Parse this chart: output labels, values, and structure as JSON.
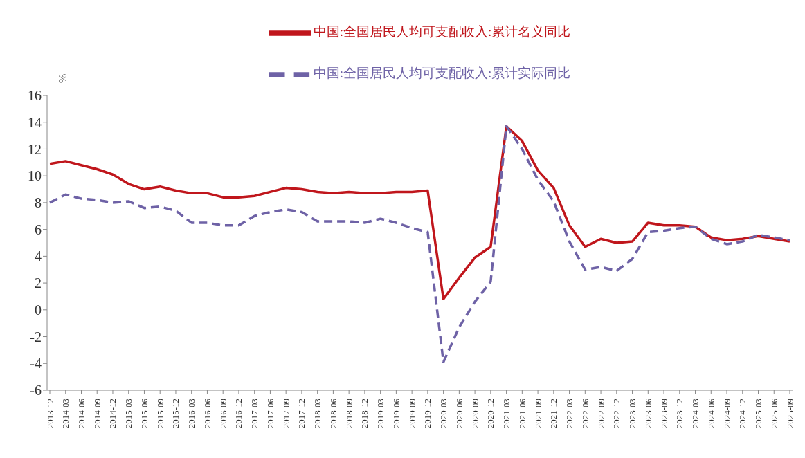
{
  "chart_data": {
    "type": "line",
    "ylabel": "%",
    "categories": [
      "2013-12",
      "2014-03",
      "2014-06",
      "2014-09",
      "2014-12",
      "2015-03",
      "2015-06",
      "2015-09",
      "2015-12",
      "2016-03",
      "2016-06",
      "2016-09",
      "2016-12",
      "2017-03",
      "2017-06",
      "2017-09",
      "2017-12",
      "2018-03",
      "2018-06",
      "2018-09",
      "2018-12",
      "2019-03",
      "2019-06",
      "2019-09",
      "2019-12",
      "2020-03",
      "2020-06",
      "2020-09",
      "2020-12",
      "2021-03",
      "2021-06",
      "2021-09",
      "2021-12",
      "2022-03",
      "2022-06",
      "2022-09",
      "2022-12",
      "2023-03",
      "2023-06",
      "2023-09",
      "2023-12",
      "2024-03",
      "2024-06",
      "2024-09",
      "2024-12",
      "2025-03",
      "2025-06",
      "2025-09"
    ],
    "series": [
      {
        "name": "中国:全国居民人均可支配收入:累计名义同比",
        "color": "#c0161c",
        "line_style": "solid",
        "values": [
          10.9,
          11.1,
          10.8,
          10.5,
          10.1,
          9.4,
          9.0,
          9.2,
          8.9,
          8.7,
          8.7,
          8.4,
          8.4,
          8.5,
          8.8,
          9.1,
          9.0,
          8.8,
          8.7,
          8.8,
          8.7,
          8.7,
          8.8,
          8.8,
          8.9,
          0.8,
          2.4,
          3.9,
          4.7,
          13.7,
          12.6,
          10.4,
          9.1,
          6.3,
          4.7,
          5.3,
          5.0,
          5.1,
          6.5,
          6.3,
          6.3,
          6.2,
          5.4,
          5.2,
          5.3,
          5.5,
          5.3,
          5.1
        ]
      },
      {
        "name": "中国:全国居民人均可支配收入:累计实际同比",
        "color": "#6e62a6",
        "line_style": "dashed",
        "values": [
          8.0,
          8.6,
          8.3,
          8.2,
          8.0,
          8.1,
          7.6,
          7.7,
          7.4,
          6.5,
          6.5,
          6.3,
          6.3,
          7.0,
          7.3,
          7.5,
          7.3,
          6.6,
          6.6,
          6.6,
          6.5,
          6.8,
          6.5,
          6.1,
          5.8,
          -3.9,
          -1.3,
          0.6,
          2.1,
          13.7,
          12.0,
          9.7,
          8.1,
          5.1,
          3.0,
          3.2,
          2.9,
          3.8,
          5.8,
          5.9,
          6.1,
          6.2,
          5.3,
          4.9,
          5.1,
          5.6,
          5.4,
          5.2
        ]
      }
    ],
    "ylim": [
      -6,
      16
    ],
    "yticks": [
      -6,
      -4,
      -2,
      0,
      2,
      4,
      6,
      8,
      10,
      12,
      14,
      16
    ],
    "grid": false,
    "legend": "top",
    "marker": "none"
  }
}
